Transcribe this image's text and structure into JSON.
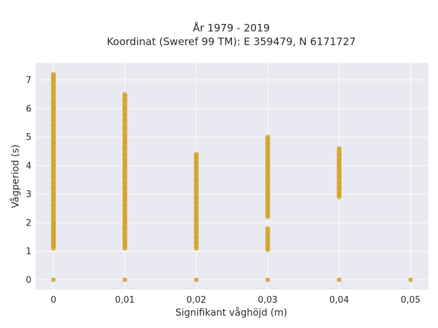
{
  "chart_data": {
    "type": "scatter",
    "title": "År 1979 - 2019",
    "subtitle": "Koordinat (Sweref 99 TM): E 359479, N 6171727",
    "xlabel": "Signifikant våghöjd (m)",
    "ylabel": "Vågperiod (s)",
    "xlim": [
      -0.0025,
      0.0525
    ],
    "ylim": [
      -0.35,
      7.6
    ],
    "x_ticks": [
      0,
      0.01,
      0.02,
      0.03,
      0.04,
      0.05
    ],
    "x_tick_labels": [
      "0",
      "0,01",
      "0,02",
      "0,03",
      "0,04",
      "0,05"
    ],
    "y_ticks": [
      0,
      1,
      2,
      3,
      4,
      5,
      6,
      7
    ],
    "y_tick_labels": [
      "0",
      "1",
      "2",
      "3",
      "4",
      "5",
      "6",
      "7"
    ],
    "grid": true,
    "point_color": "#d4a32a",
    "plot_background": "#e9e9f1",
    "series": [
      {
        "points": [
          [
            0,
            0
          ],
          [
            0,
            1.1
          ],
          [
            0,
            1.2
          ],
          [
            0,
            1.3
          ],
          [
            0,
            1.4
          ],
          [
            0,
            1.5
          ],
          [
            0,
            1.6
          ],
          [
            0,
            1.7
          ],
          [
            0,
            1.8
          ],
          [
            0,
            1.9
          ],
          [
            0,
            2.0
          ],
          [
            0,
            2.2
          ],
          [
            0,
            2.4
          ],
          [
            0,
            2.6
          ],
          [
            0,
            2.8
          ],
          [
            0,
            3.0
          ],
          [
            0,
            3.2
          ],
          [
            0,
            3.4
          ],
          [
            0,
            3.6
          ],
          [
            0,
            3.8
          ],
          [
            0,
            4.0
          ],
          [
            0,
            4.2
          ],
          [
            0,
            4.4
          ],
          [
            0,
            4.6
          ],
          [
            0,
            4.8
          ],
          [
            0,
            5.0
          ],
          [
            0,
            5.2
          ],
          [
            0,
            5.4
          ],
          [
            0,
            5.6
          ],
          [
            0,
            5.8
          ],
          [
            0,
            6.0
          ],
          [
            0,
            6.2
          ],
          [
            0,
            6.5
          ],
          [
            0,
            6.7
          ],
          [
            0,
            7.0
          ],
          [
            0,
            7.1
          ],
          [
            0,
            7.2
          ],
          [
            0.01,
            0
          ],
          [
            0.01,
            1.1
          ],
          [
            0.01,
            1.2
          ],
          [
            0.01,
            1.4
          ],
          [
            0.01,
            1.6
          ],
          [
            0.01,
            1.8
          ],
          [
            0.01,
            2.0
          ],
          [
            0.01,
            2.2
          ],
          [
            0.01,
            2.4
          ],
          [
            0.01,
            2.6
          ],
          [
            0.01,
            2.8
          ],
          [
            0.01,
            3.0
          ],
          [
            0.01,
            3.2
          ],
          [
            0.01,
            3.4
          ],
          [
            0.01,
            3.6
          ],
          [
            0.01,
            3.8
          ],
          [
            0.01,
            4.0
          ],
          [
            0.01,
            4.2
          ],
          [
            0.01,
            4.4
          ],
          [
            0.01,
            4.6
          ],
          [
            0.01,
            4.8
          ],
          [
            0.01,
            5.0
          ],
          [
            0.01,
            5.3
          ],
          [
            0.01,
            5.6
          ],
          [
            0.01,
            5.8
          ],
          [
            0.01,
            6.0
          ],
          [
            0.01,
            6.3
          ],
          [
            0.01,
            6.5
          ],
          [
            0.02,
            0
          ],
          [
            0.02,
            1.1
          ],
          [
            0.02,
            1.3
          ],
          [
            0.02,
            1.5
          ],
          [
            0.02,
            1.7
          ],
          [
            0.02,
            1.9
          ],
          [
            0.02,
            2.1
          ],
          [
            0.02,
            2.3
          ],
          [
            0.02,
            2.5
          ],
          [
            0.02,
            2.7
          ],
          [
            0.02,
            2.9
          ],
          [
            0.02,
            3.1
          ],
          [
            0.02,
            3.3
          ],
          [
            0.02,
            3.5
          ],
          [
            0.02,
            3.7
          ],
          [
            0.02,
            3.9
          ],
          [
            0.02,
            4.1
          ],
          [
            0.02,
            4.3
          ],
          [
            0.02,
            4.4
          ],
          [
            0.03,
            0
          ],
          [
            0.03,
            1.05
          ],
          [
            0.03,
            1.1
          ],
          [
            0.03,
            1.2
          ],
          [
            0.03,
            1.4
          ],
          [
            0.03,
            1.6
          ],
          [
            0.03,
            1.8
          ],
          [
            0.03,
            2.2
          ],
          [
            0.03,
            2.4
          ],
          [
            0.03,
            2.6
          ],
          [
            0.03,
            2.8
          ],
          [
            0.03,
            3.0
          ],
          [
            0.03,
            3.2
          ],
          [
            0.03,
            3.4
          ],
          [
            0.03,
            3.6
          ],
          [
            0.03,
            3.8
          ],
          [
            0.03,
            4.0
          ],
          [
            0.03,
            4.2
          ],
          [
            0.03,
            4.4
          ],
          [
            0.03,
            4.6
          ],
          [
            0.03,
            4.8
          ],
          [
            0.03,
            5.0
          ],
          [
            0.04,
            0
          ],
          [
            0.04,
            2.9
          ],
          [
            0.04,
            3.0
          ],
          [
            0.04,
            3.2
          ],
          [
            0.04,
            3.4
          ],
          [
            0.04,
            3.6
          ],
          [
            0.04,
            3.8
          ],
          [
            0.04,
            4.0
          ],
          [
            0.04,
            4.2
          ],
          [
            0.04,
            4.4
          ],
          [
            0.04,
            4.6
          ],
          [
            0.05,
            0
          ]
        ]
      }
    ]
  }
}
